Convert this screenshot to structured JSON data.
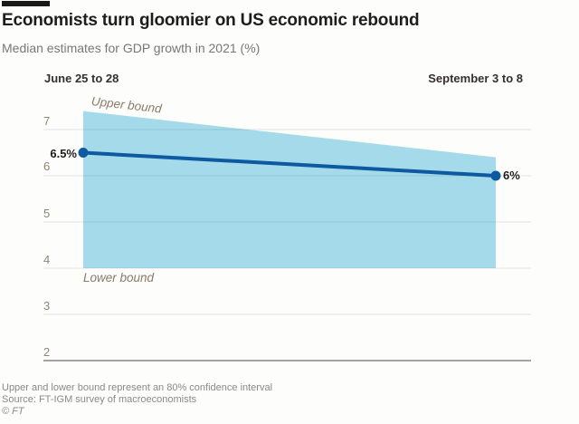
{
  "header": {
    "title": "Economists turn gloomier on US economic rebound",
    "subtitle": "Median estimates for GDP growth in 2021 (%)"
  },
  "chart_data": {
    "type": "area",
    "title": "Economists turn gloomier on US economic rebound",
    "subtitle": "Median estimates for GDP growth in 2021 (%)",
    "x_labels": [
      "June 25 to 28",
      "September 3 to 8"
    ],
    "series": [
      {
        "name": "Median estimate",
        "values": [
          6.5,
          6.0
        ]
      },
      {
        "name": "Upper bound",
        "values": [
          7.4,
          6.4
        ]
      },
      {
        "name": "Lower bound",
        "values": [
          4.0,
          4.0
        ]
      }
    ],
    "point_labels": [
      "6.5%",
      "6%"
    ],
    "band_labels": {
      "upper": "Upper bound",
      "lower": "Lower bound"
    },
    "yticks": [
      "7",
      "6",
      "5",
      "4",
      "3",
      "2"
    ],
    "ylim": [
      2,
      7.5
    ],
    "grid": true,
    "legend": "none",
    "colors": {
      "band": "#a5daea",
      "line": "#0d5aa1",
      "grid": "rgba(30,29,27,0.11)",
      "baseline": "#a6a39e"
    }
  },
  "footer": {
    "note": "Upper and lower bound represent an 80% confidence interval",
    "source": "Source: FT-IGM survey of macroeconomists",
    "copyright": "© FT"
  }
}
